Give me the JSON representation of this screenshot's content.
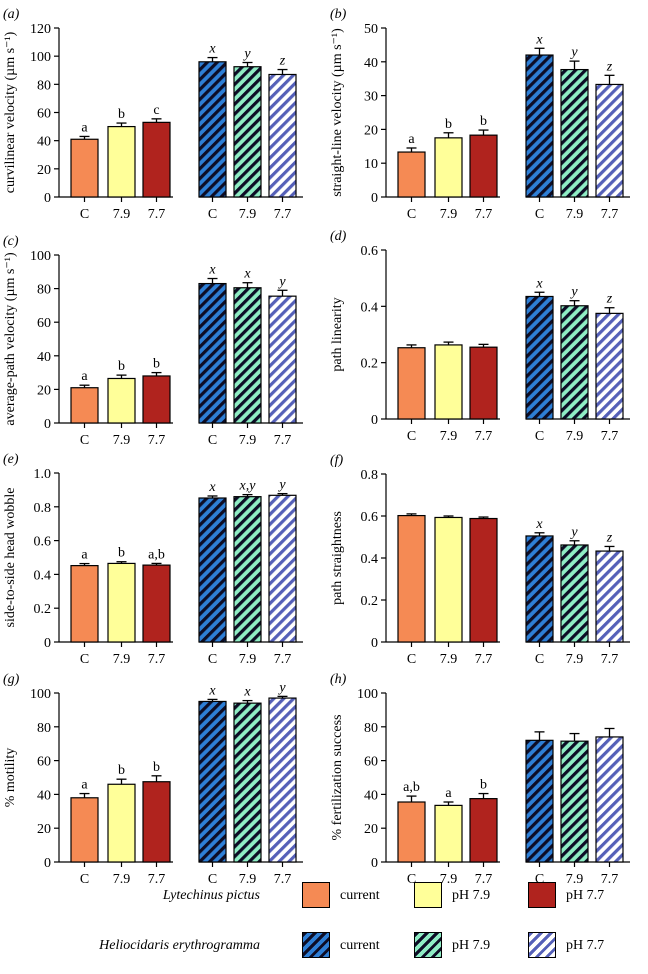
{
  "colors": {
    "lp_current": "#F58A54",
    "lp_79": "#FFFF99",
    "lp_77": "#B0231E",
    "he_current": "#2E7FD6",
    "he_79": "#8FEDC4",
    "he_77": "#8B96E4",
    "hatch": "#0d0d26"
  },
  "chart_data": [
    {
      "panel_label": "(a)",
      "type": "bar",
      "ylabel": "curvilinear velocity (µm s⁻¹)",
      "ylim": [
        0,
        120
      ],
      "yticks": [
        "0",
        "20",
        "40",
        "60",
        "80",
        "100",
        "120"
      ],
      "categories": [
        "C",
        "7.9",
        "7.7",
        "C",
        "7.9",
        "7.7"
      ],
      "values": [
        41,
        50,
        53,
        96,
        92.5,
        87
      ],
      "errors": [
        2,
        2.5,
        2.5,
        3,
        3,
        3.5
      ],
      "letters": [
        "a",
        "b",
        "c",
        "x",
        "y",
        "z"
      ]
    },
    {
      "panel_label": "(b)",
      "type": "bar",
      "ylabel": "straight-line velocity (µm s⁻¹)",
      "ylim": [
        0,
        50
      ],
      "yticks": [
        "0",
        "10",
        "20",
        "30",
        "40",
        "50"
      ],
      "categories": [
        "C",
        "7.9",
        "7.7",
        "C",
        "7.9",
        "7.7"
      ],
      "values": [
        13.3,
        17.5,
        18.3,
        42,
        37.7,
        33.3
      ],
      "errors": [
        1.2,
        1.5,
        1.5,
        2,
        2.5,
        2.7
      ],
      "letters": [
        "a",
        "b",
        "b",
        "x",
        "y",
        "z"
      ]
    },
    {
      "panel_label": "(c)",
      "type": "bar",
      "ylabel": "average-path velocity (µm s⁻¹)",
      "ylim": [
        0,
        100
      ],
      "yticks": [
        "0",
        "20",
        "40",
        "60",
        "80",
        "100"
      ],
      "categories": [
        "C",
        "7.9",
        "7.7",
        "C",
        "7.9",
        "7.7"
      ],
      "values": [
        21,
        26.5,
        28,
        83,
        80.5,
        75.5
      ],
      "errors": [
        1.5,
        2,
        2,
        3,
        3,
        3.5
      ],
      "letters": [
        "a",
        "b",
        "b",
        "x",
        "x",
        "y"
      ]
    },
    {
      "panel_label": "(d)",
      "type": "bar",
      "ylabel": "path linearity",
      "ylim": [
        0,
        0.6
      ],
      "yticks": [
        "0",
        "0.2",
        "0.4",
        "0.6"
      ],
      "categories": [
        "C",
        "7.9",
        "7.7",
        "C",
        "7.9",
        "7.7"
      ],
      "values": [
        0.253,
        0.263,
        0.255,
        0.435,
        0.402,
        0.375
      ],
      "errors": [
        0.01,
        0.01,
        0.01,
        0.015,
        0.018,
        0.02
      ],
      "letters": [
        "",
        "",
        "",
        "x",
        "y",
        "z"
      ]
    },
    {
      "panel_label": "(e)",
      "type": "bar",
      "ylabel": "side-to-side head wobble",
      "ylim": [
        0,
        1.0
      ],
      "yticks": [
        "0",
        "0.2",
        "0.4",
        "0.6",
        "0.8",
        "1.0"
      ],
      "categories": [
        "C",
        "7.9",
        "7.7",
        "C",
        "7.9",
        "7.7"
      ],
      "values": [
        0.452,
        0.465,
        0.455,
        0.852,
        0.86,
        0.868
      ],
      "errors": [
        0.012,
        0.01,
        0.01,
        0.012,
        0.012,
        0.01
      ],
      "letters": [
        "a",
        "b",
        "a,b",
        "x",
        "x,y",
        "y"
      ]
    },
    {
      "panel_label": "(f)",
      "type": "bar",
      "ylabel": "path straightness",
      "ylim": [
        0,
        0.8
      ],
      "yticks": [
        "0",
        "0.2",
        "0.4",
        "0.6",
        "0.8"
      ],
      "categories": [
        "C",
        "7.9",
        "7.7",
        "C",
        "7.9",
        "7.7"
      ],
      "values": [
        0.602,
        0.593,
        0.588,
        0.505,
        0.462,
        0.433
      ],
      "errors": [
        0.008,
        0.007,
        0.007,
        0.015,
        0.02,
        0.022
      ],
      "letters": [
        "",
        "",
        "",
        "x",
        "y",
        "z"
      ]
    },
    {
      "panel_label": "(g)",
      "type": "bar",
      "ylabel": "% motility",
      "ylim": [
        0,
        100
      ],
      "yticks": [
        "0",
        "20",
        "40",
        "60",
        "80",
        "100"
      ],
      "categories": [
        "C",
        "7.9",
        "7.7",
        "C",
        "7.9",
        "7.7"
      ],
      "values": [
        38,
        46,
        47.5,
        95,
        94,
        97
      ],
      "errors": [
        2.5,
        3,
        3.5,
        1.2,
        1.5,
        1
      ],
      "letters": [
        "a",
        "b",
        "b",
        "x",
        "x",
        "y"
      ]
    },
    {
      "panel_label": "(h)",
      "type": "bar",
      "ylabel": "% fertilization success",
      "ylim": [
        0,
        100
      ],
      "yticks": [
        "0",
        "20",
        "40",
        "60",
        "80",
        "100"
      ],
      "categories": [
        "C",
        "7.9",
        "7.7",
        "C",
        "7.9",
        "7.7"
      ],
      "values": [
        35.5,
        33.5,
        37.5,
        72,
        71.5,
        74
      ],
      "errors": [
        3.5,
        2,
        3,
        5,
        4.5,
        5
      ],
      "letters": [
        "a,b",
        "a",
        "b",
        "",
        "",
        ""
      ]
    }
  ],
  "legend": {
    "species_1": "Lytechinus pictus",
    "species_2": "Heliocidaris erythrogramma",
    "current": "current",
    "ph79": "pH 7.9",
    "ph77": "pH 7.7"
  }
}
